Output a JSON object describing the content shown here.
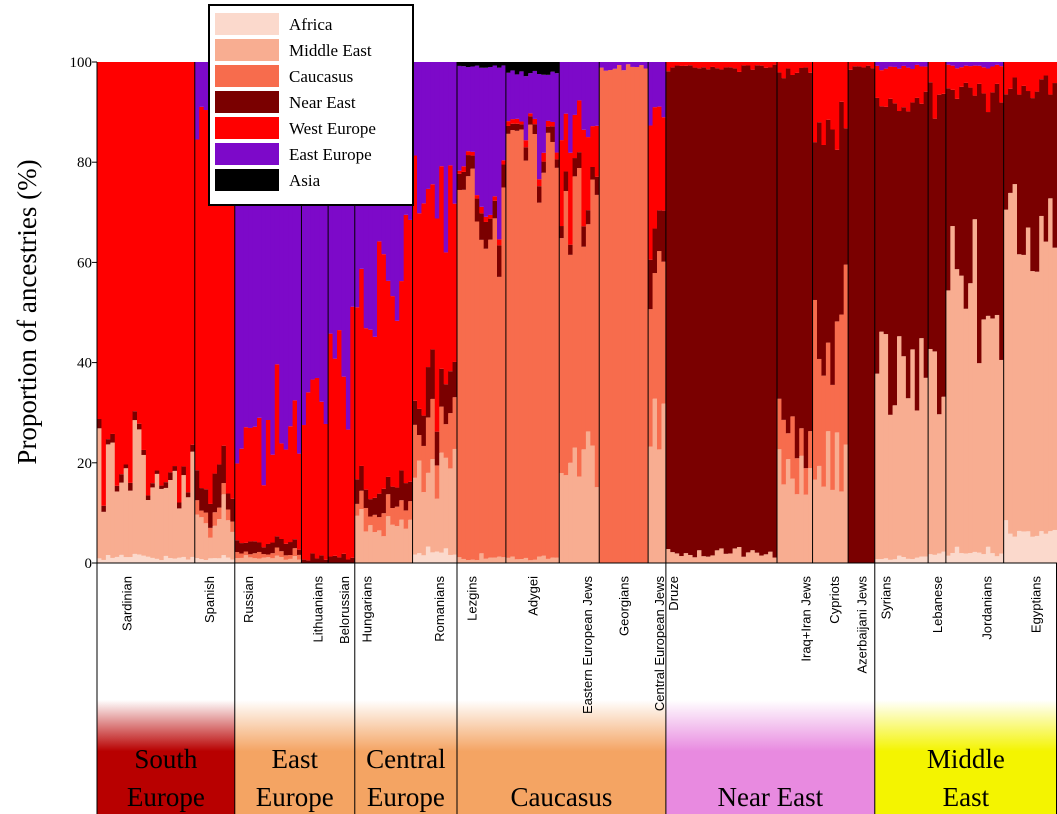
{
  "chart_data": {
    "type": "bar",
    "subtype": "stacked-individual-admixture",
    "ylabel": "Proportion of ancestries (%)",
    "ylim": [
      0,
      100
    ],
    "yticks": [
      0,
      20,
      40,
      60,
      80,
      100
    ],
    "legend_position": "top-left",
    "components": [
      {
        "name": "Africa",
        "color": "#fbd9cc"
      },
      {
        "name": "Middle East",
        "color": "#f8ad91"
      },
      {
        "name": "Caucasus",
        "color": "#f76c4d"
      },
      {
        "name": "Near East",
        "color": "#7a0000"
      },
      {
        "name": "West Europe",
        "color": "#ff0000"
      },
      {
        "name": "East Europe",
        "color": "#7d09c9"
      },
      {
        "name": "Asia",
        "color": "#000000"
      }
    ],
    "populations": [
      {
        "name": "Sardinian",
        "n": 22,
        "mean": {
          "Africa": 1,
          "Middle East": 15,
          "Caucasus": 0,
          "Near East": 1,
          "West Europe": 83,
          "East Europe": 0,
          "Asia": 0
        }
      },
      {
        "name": "Spanish",
        "n": 9,
        "mean": {
          "Africa": 1,
          "Middle East": 8,
          "Caucasus": 2,
          "Near East": 5,
          "West Europe": 69,
          "East Europe": 15,
          "Asia": 0
        }
      },
      {
        "name": "Russian",
        "n": 15,
        "mean": {
          "Africa": 0,
          "Middle East": 1,
          "Caucasus": 1,
          "Near East": 2,
          "West Europe": 22,
          "East Europe": 74,
          "Asia": 0
        }
      },
      {
        "name": "Lithuanians",
        "n": 6,
        "mean": {
          "Africa": 0,
          "Middle East": 0,
          "Caucasus": 0,
          "Near East": 1,
          "West Europe": 30,
          "East Europe": 69,
          "Asia": 0
        }
      },
      {
        "name": "Belorussian",
        "n": 6,
        "mean": {
          "Africa": 0,
          "Middle East": 0,
          "Caucasus": 0,
          "Near East": 1,
          "West Europe": 33,
          "East Europe": 66,
          "Asia": 0
        }
      },
      {
        "name": "Hungarians",
        "n": 13,
        "mean": {
          "Africa": 0,
          "Middle East": 7,
          "Caucasus": 3,
          "Near East": 4,
          "West Europe": 38,
          "East Europe": 48,
          "Asia": 0
        }
      },
      {
        "name": "Romanians",
        "n": 10,
        "mean": {
          "Africa": 2,
          "Middle East": 16,
          "Caucasus": 9,
          "Near East": 7,
          "West Europe": 38,
          "East Europe": 28,
          "Asia": 0
        }
      },
      {
        "name": "Lezgins",
        "n": 11,
        "mean": {
          "Africa": 0,
          "Middle East": 1,
          "Caucasus": 69,
          "Near East": 4,
          "West Europe": 1,
          "East Europe": 24,
          "Asia": 1
        }
      },
      {
        "name": "Adygei",
        "n": 12,
        "mean": {
          "Africa": 0,
          "Middle East": 1,
          "Caucasus": 81,
          "Near East": 2,
          "West Europe": 1,
          "East Europe": 13,
          "Asia": 2
        }
      },
      {
        "name": "Eastern European Jews",
        "n": 9,
        "mean": {
          "Africa": 0,
          "Middle East": 22,
          "Caucasus": 49,
          "Near East": 3,
          "West Europe": 14,
          "East Europe": 12,
          "Asia": 0
        }
      },
      {
        "name": "Georgians",
        "n": 11,
        "mean": {
          "Africa": 0,
          "Middle East": 0,
          "Caucasus": 99,
          "Near East": 0,
          "West Europe": 0,
          "East Europe": 1,
          "Asia": 0
        }
      },
      {
        "name": "Central European Jews",
        "n": 4,
        "mean": {
          "Africa": 0,
          "Middle East": 25,
          "Caucasus": 38,
          "Near East": 8,
          "West Europe": 20,
          "East Europe": 9,
          "Asia": 0
        }
      },
      {
        "name": "Druze",
        "n": 25,
        "mean": {
          "Africa": 0,
          "Middle East": 2,
          "Caucasus": 0,
          "Near East": 97,
          "West Europe": 1,
          "East Europe": 0,
          "Asia": 0
        }
      },
      {
        "name": "Iraq+Iran Jews",
        "n": 8,
        "mean": {
          "Africa": 0,
          "Middle East": 18,
          "Caucasus": 8,
          "Near East": 72,
          "West Europe": 2,
          "East Europe": 0,
          "Asia": 0
        }
      },
      {
        "name": "Cypriots",
        "n": 8,
        "mean": {
          "Africa": 0,
          "Middle East": 22,
          "Caucasus": 28,
          "Near East": 37,
          "West Europe": 13,
          "East Europe": 0,
          "Asia": 0
        }
      },
      {
        "name": "Azerbaijani Jews",
        "n": 6,
        "mean": {
          "Africa": 0,
          "Middle East": 0,
          "Caucasus": 0,
          "Near East": 99,
          "West Europe": 1,
          "East Europe": 0,
          "Asia": 0
        }
      },
      {
        "name": "Syrians",
        "n": 12,
        "mean": {
          "Africa": 1,
          "Middle East": 36,
          "Caucasus": 0,
          "Near East": 56,
          "West Europe": 6,
          "East Europe": 1,
          "Asia": 0
        }
      },
      {
        "name": "Lebanese",
        "n": 4,
        "mean": {
          "Africa": 2,
          "Middle East": 38,
          "Caucasus": 0,
          "Near East": 52,
          "West Europe": 8,
          "East Europe": 0,
          "Asia": 0
        }
      },
      {
        "name": "Jordanians",
        "n": 13,
        "mean": {
          "Africa": 2,
          "Middle East": 50,
          "Caucasus": 0,
          "Near East": 42,
          "West Europe": 5,
          "East Europe": 1,
          "Asia": 0
        }
      },
      {
        "name": "Egyptians",
        "n": 12,
        "mean": {
          "Africa": 5,
          "Middle East": 62,
          "Caucasus": 0,
          "Near East": 28,
          "West Europe": 5,
          "East Europe": 0,
          "Asia": 0
        }
      }
    ],
    "regions": [
      {
        "name_lines": [
          "South",
          "Europe"
        ],
        "color": "#b80000",
        "populations": [
          "Sardinian",
          "Spanish"
        ]
      },
      {
        "name_lines": [
          "East",
          "Europe"
        ],
        "color": "#f4a463",
        "populations": [
          "Russian",
          "Lithuanians",
          "Belorussian"
        ]
      },
      {
        "name_lines": [
          "Central",
          "Europe"
        ],
        "color": "#f4a463",
        "populations": [
          "Hungarians",
          "Romanians"
        ]
      },
      {
        "name_lines": [
          "Caucasus"
        ],
        "color": "#f4a463",
        "populations": [
          "Lezgins",
          "Adygei",
          "Eastern European Jews",
          "Georgians",
          "Central European Jews"
        ]
      },
      {
        "name_lines": [
          "Near East"
        ],
        "color": "#e88ae0",
        "populations": [
          "Druze",
          "Iraq+Iran Jews",
          "Cypriots",
          "Azerbaijani Jews"
        ]
      },
      {
        "name_lines": [
          "Middle",
          "East"
        ],
        "color": "#f4f400",
        "populations": [
          "Syrians",
          "Lebanese",
          "Jordanians",
          "Egyptians"
        ]
      }
    ]
  }
}
